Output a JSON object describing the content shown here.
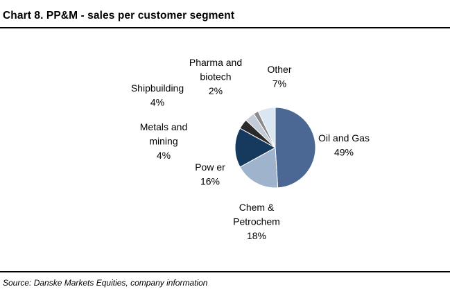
{
  "title": "Chart 8. PP&M - sales per customer segment",
  "source": "Source: Danske Markets Equities, company information",
  "chart_data": {
    "type": "pie",
    "title": "Chart 8. PP&M - sales per customer segment",
    "start_angle_deg": 0,
    "direction": "clockwise",
    "slices": [
      {
        "name": "Oil and Gas",
        "label_lines": [
          "Oil and Gas",
          "49%"
        ],
        "value": 49,
        "color": "#4a6893"
      },
      {
        "name": "Chem & Petrochem",
        "label_lines": [
          "Chem &",
          "Petrochem",
          "18%"
        ],
        "value": 18,
        "color": "#9fb3cc"
      },
      {
        "name": "Power",
        "label_lines": [
          "Pow er",
          "16%"
        ],
        "value": 16,
        "color": "#163a5e"
      },
      {
        "name": "Metals and mining",
        "label_lines": [
          "Metals and",
          "mining",
          "4%"
        ],
        "value": 4,
        "color": "#2a2a2a"
      },
      {
        "name": "Shipbuilding",
        "label_lines": [
          "Shipbuilding",
          "4%"
        ],
        "value": 4,
        "color": "#c3cbd6"
      },
      {
        "name": "Pharma and biotech",
        "label_lines": [
          "Pharma and",
          "biotech",
          "2%"
        ],
        "value": 2,
        "color": "#8a8a8a"
      },
      {
        "name": "Other",
        "label_lines": [
          "Other",
          "7%"
        ],
        "value": 7,
        "color": "#dbe6f3"
      }
    ]
  }
}
